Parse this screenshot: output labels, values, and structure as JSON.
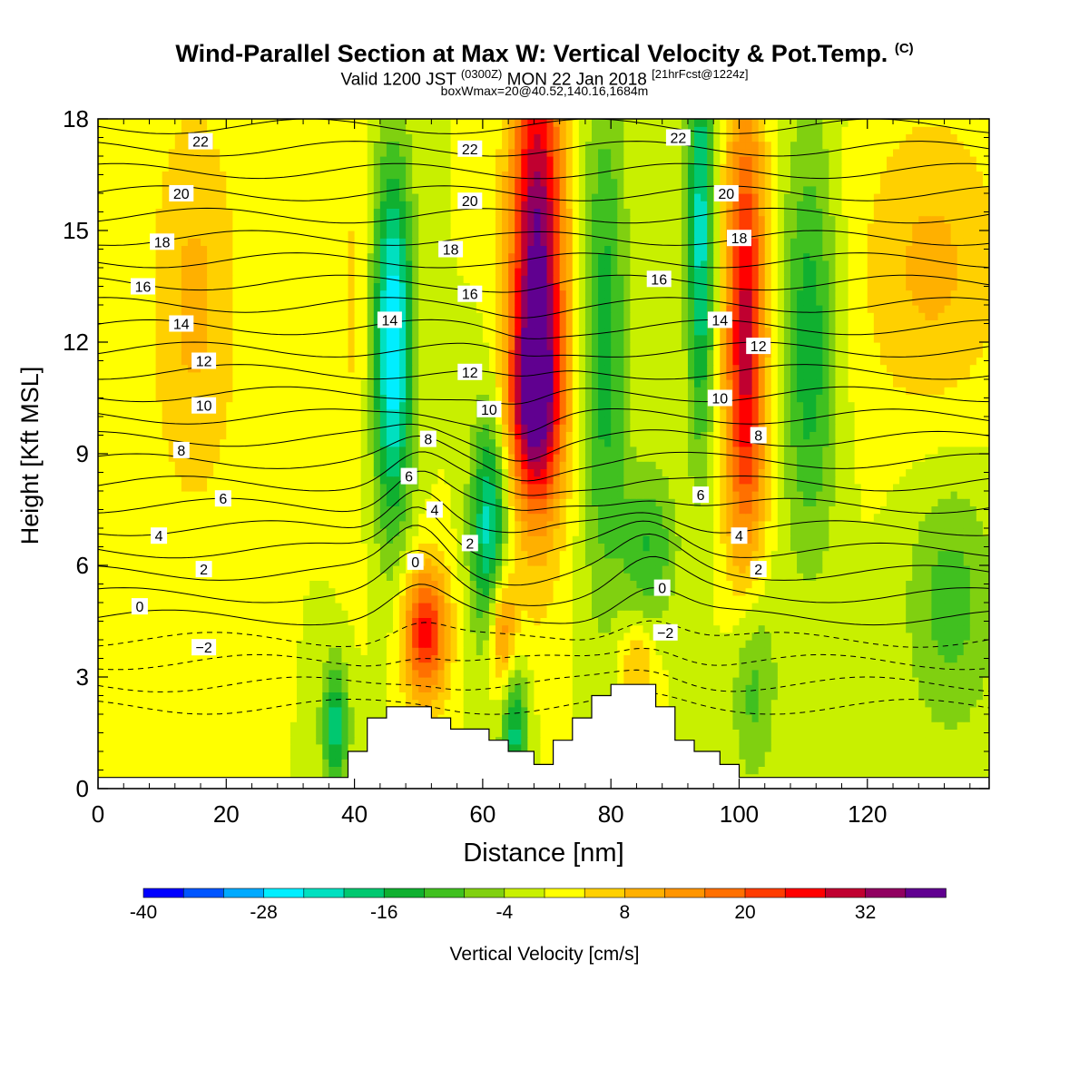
{
  "titles": {
    "main": "Wind-Parallel Section at Max W: Vertical Velocity & Pot.Temp.",
    "main_mark": "(C)",
    "valid_a": "Valid 1200 JST",
    "valid_b": "(0300Z)",
    "valid_c": "MON 22 Jan 2018",
    "valid_d": "[21hrFcst@1224z]",
    "box": "boxWmax=20@40.52,140.16,1684m"
  },
  "chart_data": {
    "type": "heatmap",
    "xlabel": "Distance [nm]",
    "ylabel": "Height [Kft MSL]",
    "xlim": [
      0,
      139
    ],
    "ylim": [
      0,
      18
    ],
    "x_ticks": [
      0,
      20,
      40,
      60,
      80,
      100,
      120
    ],
    "y_ticks": [
      0,
      3,
      6,
      9,
      12,
      15,
      18
    ],
    "colorbar": {
      "label": "Vertical Velocity [cm/s]",
      "min": -40,
      "max": 40,
      "step": 4,
      "tick_labels": [
        "-40",
        "-28",
        "-16",
        "-4",
        "8",
        "20",
        "32"
      ],
      "colors": [
        "#0000ff",
        "#0055ff",
        "#00aaff",
        "#00eeff",
        "#00e0c0",
        "#00c870",
        "#10b030",
        "#40c020",
        "#80d010",
        "#c8f000",
        "#ffff00",
        "#ffd000",
        "#ffb000",
        "#ff9500",
        "#ff7000",
        "#ff3c00",
        "#ff0000",
        "#c00030",
        "#900060",
        "#600090"
      ]
    },
    "velocity_features": [
      {
        "x": 40,
        "y": 13,
        "w": 5,
        "sx": 2,
        "sy": 4
      },
      {
        "x": 46,
        "y": 12,
        "w": -28,
        "sx": 2.2,
        "sy": 3.5
      },
      {
        "x": 51,
        "y": 4.2,
        "w": 26,
        "sx": 2.5,
        "sy": 1.3
      },
      {
        "x": 61,
        "y": 7,
        "w": -22,
        "sx": 2,
        "sy": 2.2
      },
      {
        "x": 63,
        "y": 4.3,
        "w": 18,
        "sx": 1.5,
        "sy": 1.2
      },
      {
        "x": 68.5,
        "y": 14,
        "w": 38,
        "sx": 3,
        "sy": 4.5
      },
      {
        "x": 68,
        "y": 10.3,
        "w": 20,
        "sx": 3,
        "sy": 1.6
      },
      {
        "x": 79,
        "y": 12,
        "w": -14,
        "sx": 2.5,
        "sy": 5
      },
      {
        "x": 94,
        "y": 15,
        "w": -22,
        "sx": 1.5,
        "sy": 4
      },
      {
        "x": 101,
        "y": 12,
        "w": 30,
        "sx": 2.3,
        "sy": 4.5
      },
      {
        "x": 111,
        "y": 12,
        "w": -15,
        "sx": 3,
        "sy": 4
      },
      {
        "x": 37,
        "y": 1.7,
        "w": -18,
        "sx": 1.5,
        "sy": 1.2
      },
      {
        "x": 65,
        "y": 1.5,
        "w": -18,
        "sx": 1.5,
        "sy": 1.3
      },
      {
        "x": 102,
        "y": 3,
        "w": -12,
        "sx": 2.5,
        "sy": 2
      },
      {
        "x": 15,
        "y": 13,
        "w": 9,
        "sx": 5,
        "sy": 4
      },
      {
        "x": 130,
        "y": 14,
        "w": 9,
        "sx": 8,
        "sy": 3
      },
      {
        "x": 133,
        "y": 5,
        "w": -10,
        "sx": 5,
        "sy": 2.5
      },
      {
        "x": 86,
        "y": 6.5,
        "w": -12,
        "sx": 3,
        "sy": 1.5
      },
      {
        "x": 84,
        "y": 3.4,
        "w": 9,
        "sx": 2,
        "sy": 0.8
      }
    ],
    "theta_levels": {
      "min": -4,
      "max": 23,
      "dashed_below": 0
    },
    "theta_labels": [
      {
        "v": 22,
        "x": 16,
        "y": 17.4
      },
      {
        "v": 20,
        "x": 13,
        "y": 16.0
      },
      {
        "v": 18,
        "x": 10,
        "y": 14.7
      },
      {
        "v": 16,
        "x": 7,
        "y": 13.5
      },
      {
        "v": 14,
        "x": 13,
        "y": 12.5
      },
      {
        "v": 12,
        "x": 16.5,
        "y": 11.5
      },
      {
        "v": 10,
        "x": 16.5,
        "y": 10.3
      },
      {
        "v": 8,
        "x": 13,
        "y": 9.1
      },
      {
        "v": 6,
        "x": 19.5,
        "y": 7.8
      },
      {
        "v": 4,
        "x": 9.5,
        "y": 6.8
      },
      {
        "v": 2,
        "x": 16.5,
        "y": 5.9
      },
      {
        "v": 0,
        "x": 6.5,
        "y": 4.9
      },
      {
        "v": -2,
        "x": 16.5,
        "y": 3.8
      },
      {
        "v": 22,
        "x": 58,
        "y": 17.2
      },
      {
        "v": 20,
        "x": 58,
        "y": 15.8
      },
      {
        "v": 18,
        "x": 55,
        "y": 14.5
      },
      {
        "v": 16,
        "x": 58,
        "y": 13.3
      },
      {
        "v": 14,
        "x": 45.5,
        "y": 12.6
      },
      {
        "v": 12,
        "x": 58,
        "y": 11.2
      },
      {
        "v": 10,
        "x": 61,
        "y": 10.2
      },
      {
        "v": 8,
        "x": 51.5,
        "y": 9.4
      },
      {
        "v": 6,
        "x": 48.5,
        "y": 8.4
      },
      {
        "v": 4,
        "x": 52.5,
        "y": 7.5
      },
      {
        "v": 2,
        "x": 58,
        "y": 6.6
      },
      {
        "v": 0,
        "x": 49.5,
        "y": 6.1
      },
      {
        "v": 22,
        "x": 90.5,
        "y": 17.5
      },
      {
        "v": 20,
        "x": 98,
        "y": 16.0
      },
      {
        "v": 18,
        "x": 100,
        "y": 14.8
      },
      {
        "v": 16,
        "x": 87.5,
        "y": 13.7
      },
      {
        "v": 14,
        "x": 97,
        "y": 12.6
      },
      {
        "v": 12,
        "x": 103,
        "y": 11.9
      },
      {
        "v": 10,
        "x": 97,
        "y": 10.5
      },
      {
        "v": 8,
        "x": 103,
        "y": 9.5
      },
      {
        "v": 6,
        "x": 94,
        "y": 7.9
      },
      {
        "v": 4,
        "x": 100,
        "y": 6.8
      },
      {
        "v": 2,
        "x": 103,
        "y": 5.9
      },
      {
        "v": 0,
        "x": 88,
        "y": 5.4
      },
      {
        "v": -2,
        "x": 88.5,
        "y": 4.2
      }
    ],
    "terrain": [
      [
        0,
        0.3
      ],
      [
        39,
        0.3
      ],
      [
        39,
        1.0
      ],
      [
        42,
        1.0
      ],
      [
        42,
        1.9
      ],
      [
        45,
        1.9
      ],
      [
        45,
        2.2
      ],
      [
        52,
        2.2
      ],
      [
        52,
        1.9
      ],
      [
        55,
        1.9
      ],
      [
        55,
        1.6
      ],
      [
        61,
        1.6
      ],
      [
        61,
        1.3
      ],
      [
        64,
        1.3
      ],
      [
        64,
        1.0
      ],
      [
        68,
        1.0
      ],
      [
        68,
        0.65
      ],
      [
        71,
        0.65
      ],
      [
        71,
        1.3
      ],
      [
        74,
        1.3
      ],
      [
        74,
        1.9
      ],
      [
        77,
        1.9
      ],
      [
        77,
        2.5
      ],
      [
        80,
        2.5
      ],
      [
        80,
        2.8
      ],
      [
        87,
        2.8
      ],
      [
        87,
        2.2
      ],
      [
        90,
        2.2
      ],
      [
        90,
        1.3
      ],
      [
        93,
        1.3
      ],
      [
        93,
        1.0
      ],
      [
        97,
        1.0
      ],
      [
        97,
        0.65
      ],
      [
        100,
        0.65
      ],
      [
        100,
        0.3
      ],
      [
        139,
        0.3
      ]
    ]
  }
}
